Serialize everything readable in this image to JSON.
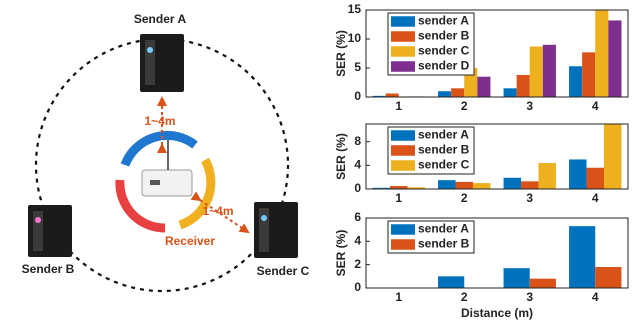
{
  "diagram": {
    "sender_a": "Sender A",
    "sender_b": "Sender B",
    "sender_c": "Sender C",
    "distance_top": "1~4m",
    "distance_right": "1~4m",
    "receiver": "Receiver"
  },
  "chart_data": [
    {
      "type": "bar",
      "ylabel": "SER (%)",
      "categories": [
        "1",
        "2",
        "3",
        "4"
      ],
      "ylim": [
        0,
        15
      ],
      "yticks": [
        0,
        5,
        10,
        15
      ],
      "legend": "upper left",
      "series": [
        {
          "name": "sender A",
          "color": "#0072BD",
          "values": [
            0.2,
            1.0,
            1.5,
            5.3
          ]
        },
        {
          "name": "sender B",
          "color": "#D95319",
          "values": [
            0.6,
            1.5,
            3.8,
            7.7
          ]
        },
        {
          "name": "sender C",
          "color": "#EDB120",
          "values": [
            0.1,
            5.0,
            8.7,
            15
          ]
        },
        {
          "name": "sender D",
          "color": "#7E2F8E",
          "values": [
            0.1,
            3.5,
            9.0,
            13.2
          ]
        }
      ]
    },
    {
      "type": "bar",
      "ylabel": "SER (%)",
      "categories": [
        "1",
        "2",
        "3",
        "4"
      ],
      "ylim": [
        0,
        11
      ],
      "yticks": [
        0,
        4,
        8
      ],
      "legend": "upper left",
      "series": [
        {
          "name": "sender A",
          "color": "#0072BD",
          "values": [
            0.2,
            1.5,
            1.9,
            5.0
          ]
        },
        {
          "name": "sender B",
          "color": "#D95319",
          "values": [
            0.5,
            1.2,
            1.3,
            3.6
          ]
        },
        {
          "name": "sender C",
          "color": "#EDB120",
          "values": [
            0.3,
            1.0,
            4.4,
            11
          ]
        }
      ]
    },
    {
      "type": "bar",
      "ylabel": "SER (%)",
      "xlabel": "Distance (m)",
      "categories": [
        "1",
        "2",
        "3",
        "4"
      ],
      "ylim": [
        0,
        6
      ],
      "yticks": [
        0,
        2,
        4,
        6
      ],
      "legend": "upper left",
      "series": [
        {
          "name": "sender A",
          "color": "#0072BD",
          "values": [
            0,
            1.0,
            1.7,
            5.3
          ]
        },
        {
          "name": "sender B",
          "color": "#D95319",
          "values": [
            0,
            0,
            0.8,
            1.8
          ]
        }
      ]
    }
  ]
}
